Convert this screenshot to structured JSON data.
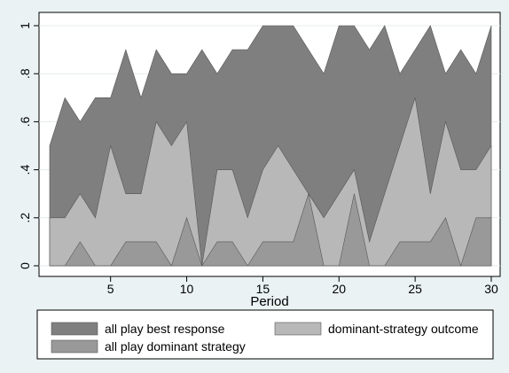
{
  "chart_data": {
    "type": "area",
    "xlabel": "Period",
    "x": [
      1,
      2,
      3,
      4,
      5,
      6,
      7,
      8,
      9,
      10,
      11,
      12,
      13,
      14,
      15,
      16,
      17,
      18,
      19,
      20,
      21,
      22,
      23,
      24,
      25,
      26,
      27,
      28,
      29,
      30
    ],
    "xlim": [
      1,
      30
    ],
    "ylim": [
      0,
      1
    ],
    "xticks": [
      5,
      10,
      15,
      20,
      25,
      30
    ],
    "xtick_labels": [
      "5",
      "10",
      "15",
      "20",
      "25",
      "30"
    ],
    "yticks": [
      0,
      0.2,
      0.4,
      0.6,
      0.8,
      1
    ],
    "ytick_labels": [
      "0",
      ".2",
      ".4",
      ".6",
      ".8",
      "1"
    ],
    "grid": "horizontal",
    "legend_position": "bottom",
    "series": [
      {
        "name": "all play best response",
        "color": "#7f7f7f",
        "values": [
          0.5,
          0.7,
          0.6,
          0.7,
          0.7,
          0.9,
          0.7,
          0.9,
          0.8,
          0.8,
          0.9,
          0.8,
          0.9,
          0.9,
          1.0,
          1.0,
          1.0,
          0.9,
          0.8,
          1.0,
          1.0,
          0.9,
          1.0,
          0.8,
          0.9,
          1.0,
          0.8,
          0.9,
          0.8,
          1.0
        ]
      },
      {
        "name": "dominant-strategy outcome",
        "color": "#b8b8b8",
        "values": [
          0.2,
          0.2,
          0.3,
          0.2,
          0.5,
          0.3,
          0.3,
          0.6,
          0.5,
          0.6,
          0.0,
          0.4,
          0.4,
          0.2,
          0.4,
          0.5,
          0.4,
          0.3,
          0.2,
          0.3,
          0.4,
          0.1,
          0.3,
          0.5,
          0.7,
          0.3,
          0.6,
          0.4,
          0.4,
          0.5
        ]
      },
      {
        "name": "all play dominant strategy",
        "color": "#999999",
        "values": [
          0.0,
          0.0,
          0.1,
          0.0,
          0.0,
          0.1,
          0.1,
          0.1,
          0.0,
          0.2,
          0.0,
          0.1,
          0.1,
          0.0,
          0.1,
          0.1,
          0.1,
          0.3,
          0.0,
          0.0,
          0.3,
          0.0,
          0.0,
          0.1,
          0.1,
          0.1,
          0.2,
          0.0,
          0.2,
          0.2
        ]
      }
    ]
  }
}
